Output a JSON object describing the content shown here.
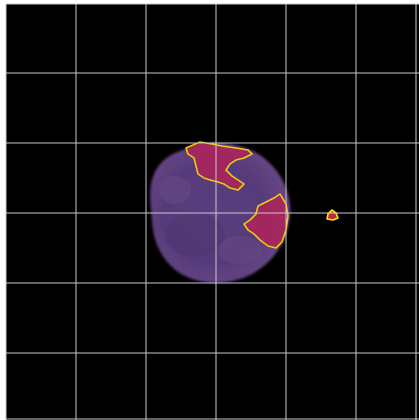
{
  "viewer": {
    "background_color": "#000000",
    "grid_color": "#c8c8c8",
    "grid_line_count": 6,
    "overlay": {
      "contour_color": "#ffe600",
      "region_fill": "#b0235a"
    },
    "specimen": {
      "cell_body_color": "#5a3a7a",
      "cell_edge_color": "#3e2a5c"
    }
  }
}
